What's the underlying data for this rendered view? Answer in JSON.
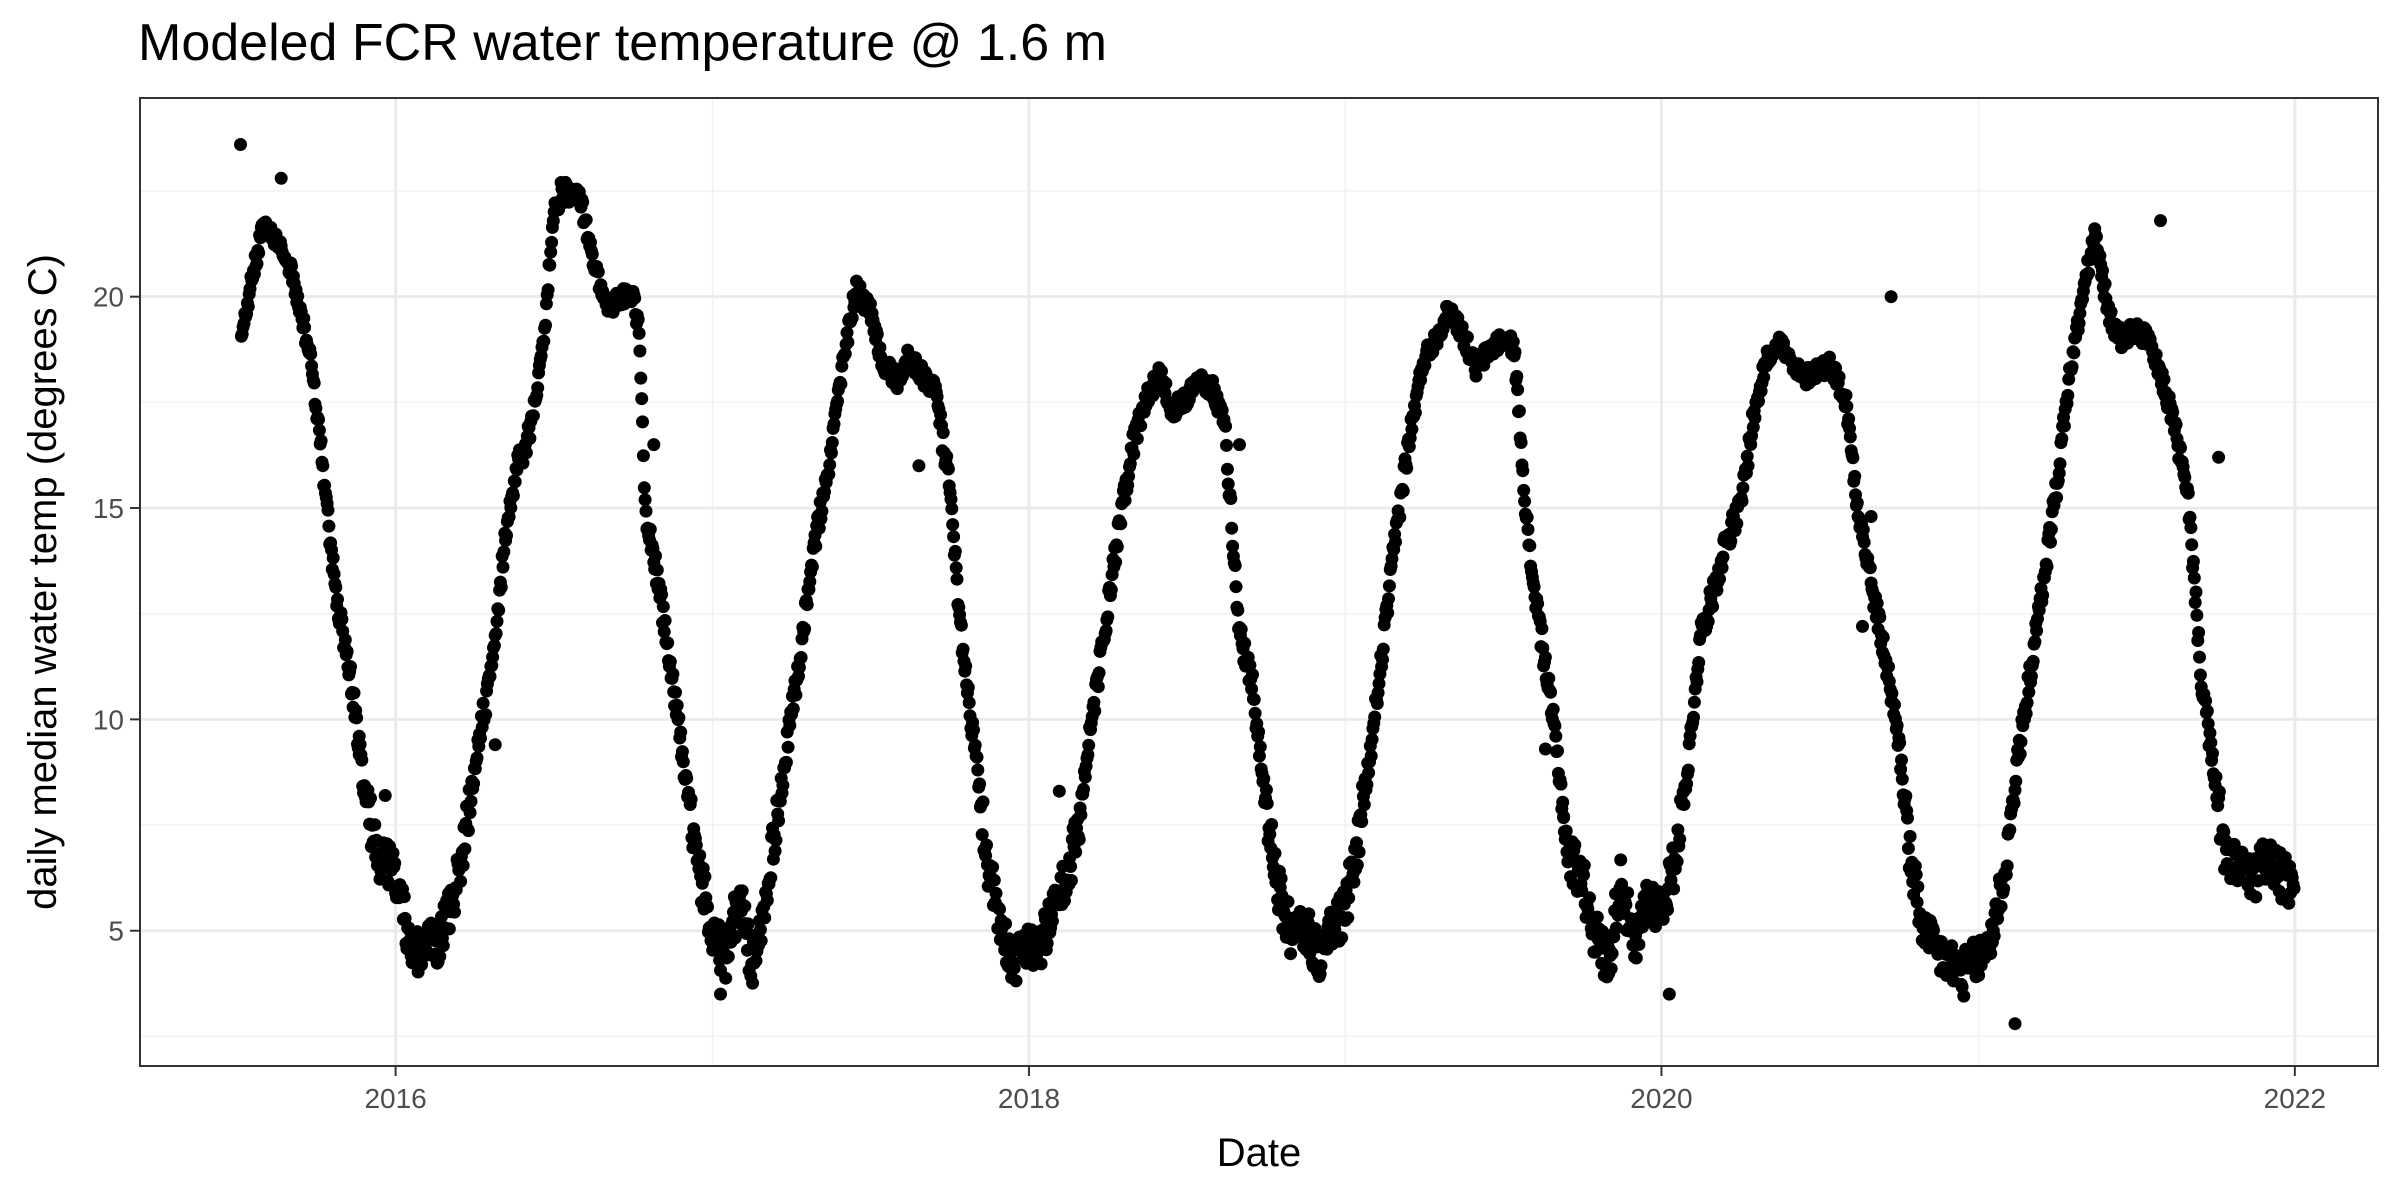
{
  "chart_data": {
    "type": "scatter",
    "title": "Modeled FCR water temperature @ 1.6 m",
    "xlabel": "Date",
    "ylabel": "daily median water temp (degrees C)",
    "x_ticks": [
      "2016",
      "2018",
      "2020",
      "2022"
    ],
    "y_ticks": [
      "5",
      "10",
      "15",
      "20"
    ],
    "xlim": [
      "2015-03-12",
      "2022-04-07"
    ],
    "ylim": [
      1.8,
      24.7
    ],
    "grid": true,
    "legend": "none",
    "point_color": "#000000",
    "series": [
      {
        "anchors": [
          [
            "2015-07-07",
            19.0
          ],
          [
            "2015-07-20",
            20.5
          ],
          [
            "2015-08-01",
            21.7
          ],
          [
            "2015-08-15",
            21.3
          ],
          [
            "2015-08-28",
            21.0
          ],
          [
            "2015-09-10",
            20.0
          ],
          [
            "2015-09-25",
            18.5
          ],
          [
            "2015-10-10",
            15.8
          ],
          [
            "2015-10-25",
            12.8
          ],
          [
            "2015-11-10",
            11.0
          ],
          [
            "2015-11-25",
            8.5
          ],
          [
            "2015-12-10",
            6.8
          ],
          [
            "2015-12-25",
            6.5
          ],
          [
            "2016-01-05",
            6.0
          ],
          [
            "2016-01-20",
            4.4
          ],
          [
            "2016-02-05",
            4.6
          ],
          [
            "2016-02-20",
            4.8
          ],
          [
            "2016-03-05",
            5.5
          ],
          [
            "2016-03-20",
            7.0
          ],
          [
            "2016-04-05",
            9.5
          ],
          [
            "2016-04-20",
            11.0
          ],
          [
            "2016-05-05",
            14.0
          ],
          [
            "2016-05-20",
            16.0
          ],
          [
            "2016-06-05",
            16.8
          ],
          [
            "2016-06-20",
            19.0
          ],
          [
            "2016-07-01",
            22.0
          ],
          [
            "2016-07-15",
            22.5
          ],
          [
            "2016-08-01",
            22.3
          ],
          [
            "2016-08-15",
            21.0
          ],
          [
            "2016-09-01",
            19.7
          ],
          [
            "2016-09-15",
            20.0
          ],
          [
            "2016-10-01",
            20.0
          ],
          [
            "2016-10-08",
            19.2
          ],
          [
            "2016-10-15",
            15.0
          ],
          [
            "2016-11-01",
            13.0
          ],
          [
            "2016-11-15",
            11.0
          ],
          [
            "2016-12-01",
            8.5
          ],
          [
            "2016-12-15",
            6.5
          ],
          [
            "2017-01-01",
            5.0
          ],
          [
            "2017-01-15",
            4.3
          ],
          [
            "2017-02-01",
            5.8
          ],
          [
            "2017-02-15",
            4.2
          ],
          [
            "2017-03-01",
            5.5
          ],
          [
            "2017-03-15",
            7.5
          ],
          [
            "2017-04-01",
            10.0
          ],
          [
            "2017-04-15",
            12.0
          ],
          [
            "2017-05-01",
            14.5
          ],
          [
            "2017-05-15",
            16.0
          ],
          [
            "2017-06-01",
            18.5
          ],
          [
            "2017-06-15",
            20.2
          ],
          [
            "2017-07-01",
            19.7
          ],
          [
            "2017-07-15",
            18.5
          ],
          [
            "2017-08-01",
            18.0
          ],
          [
            "2017-08-15",
            18.6
          ],
          [
            "2017-09-01",
            18.1
          ],
          [
            "2017-09-15",
            17.8
          ],
          [
            "2017-10-01",
            15.5
          ],
          [
            "2017-10-15",
            12.0
          ],
          [
            "2017-11-01",
            9.0
          ],
          [
            "2017-11-15",
            6.5
          ],
          [
            "2017-12-01",
            4.8
          ],
          [
            "2017-12-15",
            4.3
          ],
          [
            "2018-01-01",
            4.8
          ],
          [
            "2018-01-15",
            4.6
          ],
          [
            "2018-02-01",
            5.8
          ],
          [
            "2018-02-15",
            6.2
          ],
          [
            "2018-03-01",
            7.8
          ],
          [
            "2018-03-15",
            10.0
          ],
          [
            "2018-04-01",
            12.5
          ],
          [
            "2018-04-15",
            14.5
          ],
          [
            "2018-05-01",
            16.5
          ],
          [
            "2018-05-15",
            17.5
          ],
          [
            "2018-06-01",
            18.2
          ],
          [
            "2018-06-15",
            17.3
          ],
          [
            "2018-07-01",
            17.6
          ],
          [
            "2018-07-15",
            18.1
          ],
          [
            "2018-08-01",
            17.8
          ],
          [
            "2018-08-15",
            17.0
          ],
          [
            "2018-09-01",
            12.0
          ],
          [
            "2018-09-15",
            11.0
          ],
          [
            "2018-10-01",
            8.0
          ],
          [
            "2018-10-15",
            6.0
          ],
          [
            "2018-11-01",
            4.8
          ],
          [
            "2018-11-15",
            5.2
          ],
          [
            "2018-12-01",
            4.3
          ],
          [
            "2018-12-15",
            5.0
          ],
          [
            "2019-01-01",
            5.5
          ],
          [
            "2019-01-15",
            7.0
          ],
          [
            "2019-02-01",
            9.5
          ],
          [
            "2019-02-15",
            12.0
          ],
          [
            "2019-03-01",
            14.5
          ],
          [
            "2019-03-15",
            16.5
          ],
          [
            "2019-04-01",
            18.5
          ],
          [
            "2019-04-15",
            19.0
          ],
          [
            "2019-05-01",
            19.7
          ],
          [
            "2019-05-15",
            19.2
          ],
          [
            "2019-06-01",
            18.3
          ],
          [
            "2019-06-15",
            18.7
          ],
          [
            "2019-07-01",
            19.0
          ],
          [
            "2019-07-15",
            18.8
          ],
          [
            "2019-08-01",
            14.0
          ],
          [
            "2019-08-15",
            12.0
          ],
          [
            "2019-09-01",
            9.5
          ],
          [
            "2019-09-15",
            6.8
          ],
          [
            "2019-10-01",
            6.3
          ],
          [
            "2019-10-15",
            5.0
          ],
          [
            "2019-11-01",
            4.2
          ],
          [
            "2019-11-15",
            6.3
          ],
          [
            "2019-12-01",
            4.4
          ],
          [
            "2019-12-15",
            5.8
          ],
          [
            "2020-01-01",
            5.5
          ],
          [
            "2020-01-15",
            6.5
          ],
          [
            "2020-02-01",
            9.0
          ],
          [
            "2020-02-15",
            12.0
          ],
          [
            "2020-03-01",
            13.0
          ],
          [
            "2020-03-15",
            14.2
          ],
          [
            "2020-04-01",
            15.0
          ],
          [
            "2020-04-15",
            17.0
          ],
          [
            "2020-05-01",
            18.5
          ],
          [
            "2020-05-15",
            19.0
          ],
          [
            "2020-06-01",
            18.3
          ],
          [
            "2020-06-15",
            18.1
          ],
          [
            "2020-07-01",
            18.3
          ],
          [
            "2020-07-15",
            18.4
          ],
          [
            "2020-08-01",
            17.5
          ],
          [
            "2020-08-15",
            15.0
          ],
          [
            "2020-09-01",
            13.0
          ],
          [
            "2020-09-15",
            11.5
          ],
          [
            "2020-10-01",
            9.5
          ],
          [
            "2020-10-15",
            6.5
          ],
          [
            "2020-11-01",
            4.8
          ],
          [
            "2020-11-15",
            4.5
          ],
          [
            "2020-12-01",
            4.2
          ],
          [
            "2020-12-15",
            4.0
          ],
          [
            "2021-01-01",
            4.3
          ],
          [
            "2021-01-15",
            4.8
          ],
          [
            "2021-02-01",
            6.5
          ],
          [
            "2021-02-15",
            9.0
          ],
          [
            "2021-03-01",
            11.0
          ],
          [
            "2021-03-15",
            13.0
          ],
          [
            "2021-04-01",
            15.5
          ],
          [
            "2021-04-15",
            18.0
          ],
          [
            "2021-05-01",
            20.0
          ],
          [
            "2021-05-15",
            21.5
          ],
          [
            "2021-06-01",
            19.5
          ],
          [
            "2021-06-15",
            19.0
          ],
          [
            "2021-07-01",
            19.2
          ],
          [
            "2021-07-15",
            19.0
          ],
          [
            "2021-08-01",
            18.0
          ],
          [
            "2021-08-15",
            17.0
          ],
          [
            "2021-09-01",
            15.0
          ],
          [
            "2021-09-15",
            11.0
          ],
          [
            "2021-10-01",
            8.5
          ],
          [
            "2021-10-15",
            6.5
          ],
          [
            "2021-11-01",
            6.5
          ],
          [
            "2021-11-15",
            6.2
          ],
          [
            "2021-12-01",
            6.8
          ],
          [
            "2021-12-15",
            6.3
          ],
          [
            "2021-12-31",
            6.0
          ]
        ],
        "extra_points": [
          [
            "2015-07-06",
            23.6
          ],
          [
            "2015-08-22",
            22.8
          ],
          [
            "2016-07-10",
            22.7
          ],
          [
            "2016-10-25",
            16.5
          ],
          [
            "2018-02-05",
            8.3
          ],
          [
            "2019-09-10",
            7.7
          ],
          [
            "2020-09-22",
            20.0
          ],
          [
            "2021-02-12",
            2.8
          ],
          [
            "2020-01-10",
            3.5
          ],
          [
            "2017-01-10",
            3.5
          ],
          [
            "2016-04-25",
            9.4
          ],
          [
            "2021-07-30",
            21.8
          ],
          [
            "2015-12-20",
            8.2
          ],
          [
            "2015-11-20",
            9.6
          ],
          [
            "2019-08-20",
            9.3
          ],
          [
            "2020-08-20",
            12.2
          ],
          [
            "2017-08-27",
            16.0
          ],
          [
            "2018-09-01",
            16.5
          ],
          [
            "2020-08-30",
            14.8
          ],
          [
            "2021-10-05",
            16.2
          ]
        ]
      }
    ]
  }
}
